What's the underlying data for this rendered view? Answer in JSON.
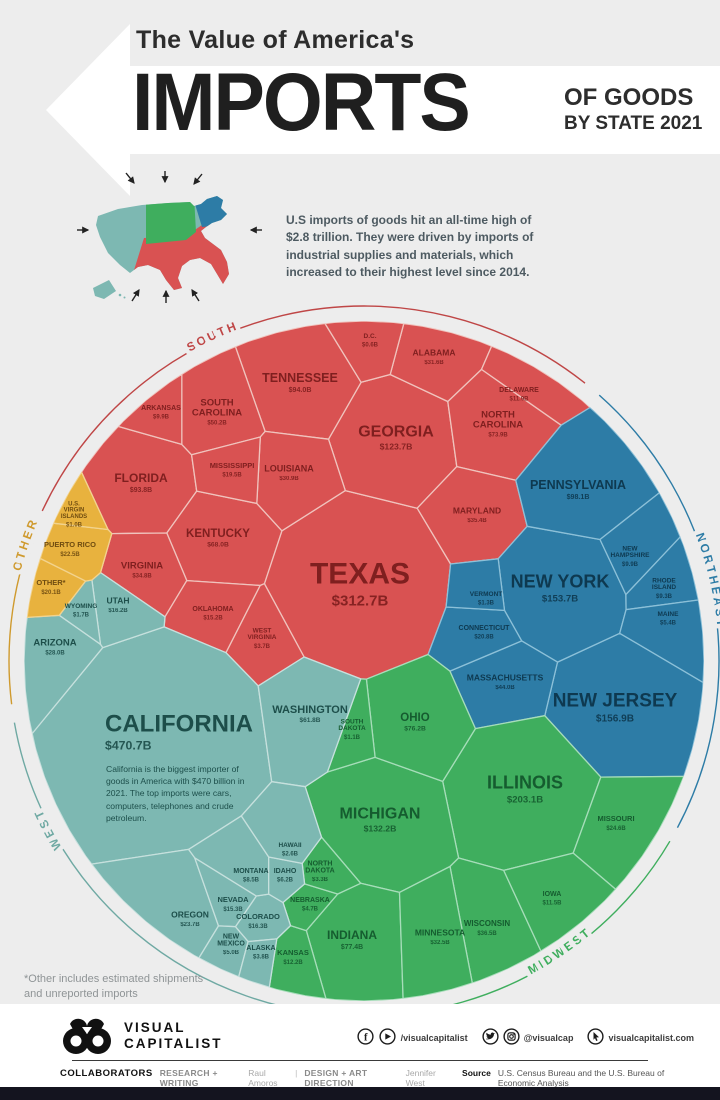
{
  "header": {
    "kicker": "The Value of America's",
    "title": "IMPORTS",
    "subtitle1": "OF GOODS",
    "subtitle2": "BY STATE 2021"
  },
  "intro": "U.S imports of goods hit an all-time high of $2.8 trillion. They were driven by imports of industrial supplies and materials, which increased to their highest level since 2014.",
  "footnote": "*Other includes estimated shipments and unreported imports",
  "chart_data": {
    "type": "treemap",
    "variant": "voronoi-circle",
    "title": "The Value of America's Imports of Goods by State 2021",
    "units": "USD billions",
    "total_label": "$2.8 trillion",
    "california_note": "California is the biggest importer of goods in America with $470 billion in 2021. The top imports were cars, computers, telephones and crude petroleum.",
    "regions": [
      {
        "name": "SOUTH",
        "color": "#d95252",
        "border_color": "#f0c3bd",
        "text_color": "#7f1f1f",
        "arc_color": "#bf4646",
        "states": [
          {
            "name": "TEXAS",
            "value_b": 312.7,
            "label": "$312.7B"
          },
          {
            "name": "GEORGIA",
            "value_b": 123.7,
            "label": "$123.7B"
          },
          {
            "name": "TENNESSEE",
            "value_b": 94.0,
            "label": "$94.0B"
          },
          {
            "name": "FLORIDA",
            "value_b": 93.8,
            "label": "$93.8B"
          },
          {
            "name": "NORTH CAROLINA",
            "value_b": 73.9,
            "label": "$73.9B"
          },
          {
            "name": "KENTUCKY",
            "value_b": 68.0,
            "label": "$68.0B"
          },
          {
            "name": "SOUTH CAROLINA",
            "value_b": 50.2,
            "label": "$50.2B"
          },
          {
            "name": "MARYLAND",
            "value_b": 35.4,
            "label": "$35.4B"
          },
          {
            "name": "VIRGINIA",
            "value_b": 34.8,
            "label": "$34.8B"
          },
          {
            "name": "ALABAMA",
            "value_b": 31.6,
            "label": "$31.6B"
          },
          {
            "name": "LOUISIANA",
            "value_b": 30.9,
            "label": "$30.9B"
          },
          {
            "name": "MISSISSIPPI",
            "value_b": 19.5,
            "label": "$19.5B"
          },
          {
            "name": "OKLAHOMA",
            "value_b": 15.2,
            "label": "$15.2B"
          },
          {
            "name": "DELAWARE",
            "value_b": 11.9,
            "label": "$11.9B"
          },
          {
            "name": "ARKANSAS",
            "value_b": 9.9,
            "label": "$9.9B"
          },
          {
            "name": "WEST VIRGINIA",
            "value_b": 3.7,
            "label": "$3.7B"
          },
          {
            "name": "D.C.",
            "value_b": 0.6,
            "label": "$0.6B"
          }
        ]
      },
      {
        "name": "NORTHEAST",
        "color": "#2d7ca6",
        "border_color": "#8cc0d8",
        "text_color": "#0e3950",
        "arc_color": "#2d7ca6",
        "states": [
          {
            "name": "NEW JERSEY",
            "value_b": 156.9,
            "label": "$156.9B"
          },
          {
            "name": "NEW YORK",
            "value_b": 153.7,
            "label": "$153.7B"
          },
          {
            "name": "PENNSYLVANIA",
            "value_b": 98.1,
            "label": "$98.1B"
          },
          {
            "name": "MASSACHUSETTS",
            "value_b": 44.0,
            "label": "$44.0B"
          },
          {
            "name": "CONNECTICUT",
            "value_b": 20.8,
            "label": "$20.8B"
          },
          {
            "name": "NEW HAMPSHIRE",
            "value_b": 9.9,
            "label": "$9.9B"
          },
          {
            "name": "RHODE ISLAND",
            "value_b": 9.3,
            "label": "$9.3B"
          },
          {
            "name": "MAINE",
            "value_b": 5.4,
            "label": "$5.4B"
          },
          {
            "name": "VERMONT",
            "value_b": 1.3,
            "label": "$1.3B"
          }
        ]
      },
      {
        "name": "MIDWEST",
        "color": "#3fae5e",
        "border_color": "#a6ddb9",
        "text_color": "#155c2f",
        "arc_color": "#3fae5e",
        "states": [
          {
            "name": "ILLINOIS",
            "value_b": 203.1,
            "label": "$203.1B"
          },
          {
            "name": "MICHIGAN",
            "value_b": 132.2,
            "label": "$132.2B"
          },
          {
            "name": "INDIANA",
            "value_b": 77.4,
            "label": "$77.4B"
          },
          {
            "name": "OHIO",
            "value_b": 76.2,
            "label": "$76.2B"
          },
          {
            "name": "WISCONSIN",
            "value_b": 36.5,
            "label": "$36.5B"
          },
          {
            "name": "MINNESOTA",
            "value_b": 32.5,
            "label": "$32.5B"
          },
          {
            "name": "MISSOURI",
            "value_b": 24.6,
            "label": "$24.6B"
          },
          {
            "name": "KANSAS",
            "value_b": 12.2,
            "label": "$12.2B"
          },
          {
            "name": "IOWA",
            "value_b": 11.5,
            "label": "$11.5B"
          },
          {
            "name": "NEBRASKA",
            "value_b": 4.7,
            "label": "$4.7B"
          },
          {
            "name": "NORTH DAKOTA",
            "value_b": 3.3,
            "label": "$3.3B"
          },
          {
            "name": "SOUTH DAKOTA",
            "value_b": 1.1,
            "label": "$1.1B"
          }
        ]
      },
      {
        "name": "WEST",
        "color": "#7db8b2",
        "border_color": "#c6e0dd",
        "text_color": "#1d4e4a",
        "arc_color": "#6fa9a3",
        "states": [
          {
            "name": "CALIFORNIA",
            "value_b": 470.7,
            "label": "$470.7B"
          },
          {
            "name": "WASHINGTON",
            "value_b": 61.8,
            "label": "$61.8B"
          },
          {
            "name": "ARIZONA",
            "value_b": 28.0,
            "label": "$28.0B"
          },
          {
            "name": "OREGON",
            "value_b": 23.7,
            "label": "$23.7B"
          },
          {
            "name": "COLORADO",
            "value_b": 16.3,
            "label": "$16.3B"
          },
          {
            "name": "UTAH",
            "value_b": 16.2,
            "label": "$16.2B"
          },
          {
            "name": "NEVADA",
            "value_b": 15.3,
            "label": "$15.3B"
          },
          {
            "name": "MONTANA",
            "value_b": 8.5,
            "label": "$8.5B"
          },
          {
            "name": "IDAHO",
            "value_b": 6.2,
            "label": "$6.2B"
          },
          {
            "name": "NEW MEXICO",
            "value_b": 5.0,
            "label": "$5.0B"
          },
          {
            "name": "ALASKA",
            "value_b": 3.8,
            "label": "$3.8B"
          },
          {
            "name": "HAWAII",
            "value_b": 2.6,
            "label": "$2.6B"
          },
          {
            "name": "WYOMING",
            "value_b": 1.7,
            "label": "$1.7B"
          }
        ]
      },
      {
        "name": "OTHER",
        "color": "#e8b23e",
        "border_color": "#f2d38e",
        "text_color": "#6f4c10",
        "arc_color": "#cf9a2e",
        "states": [
          {
            "name": "PUERTO RICO",
            "value_b": 22.5,
            "label": "$22.5B"
          },
          {
            "name": "OTHER*",
            "value_b": 20.1,
            "label": "$20.1B"
          },
          {
            "name": "U.S. VIRGIN ISLANDS",
            "value_b": 1.0,
            "label": "$1.0B"
          }
        ]
      }
    ]
  },
  "footer": {
    "logo_line1": "VISUAL",
    "logo_line2": "CAPITALIST",
    "handle1": "/visualcapitalist",
    "handle2": "@visualcap",
    "handle3": "visualcapitalist.com",
    "collaborators_label": "COLLABORATORS",
    "research_label": "RESEARCH + WRITING",
    "research_name": "Raul Amoros",
    "design_label": "DESIGN + ART DIRECTION",
    "design_name": "Jennifer West",
    "source_label": "Source",
    "source_text": "U.S. Census Bureau and the U.S. Bureau of Economic Analysis"
  }
}
